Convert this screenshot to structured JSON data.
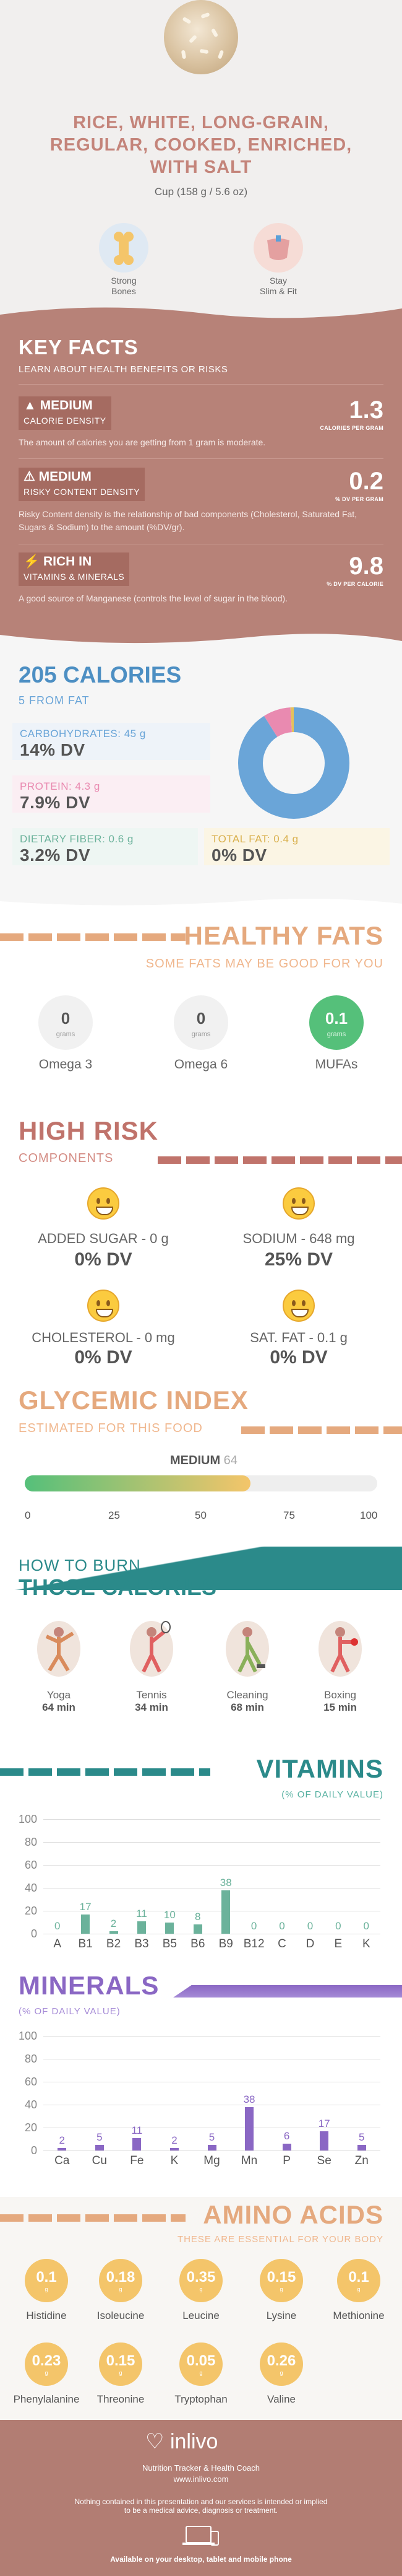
{
  "header": {
    "title_lines": [
      "RICE, WHITE, LONG-GRAIN,",
      "REGULAR, COOKED, ENRICHED,",
      "WITH SALT"
    ],
    "serving": "Cup (158 g / 5.6 oz)",
    "badges": [
      {
        "label1": "Strong",
        "label2": "Bones",
        "icon": "bone-icon"
      },
      {
        "label1": "Stay",
        "label2": "Slim & Fit",
        "icon": "scale-icon"
      }
    ]
  },
  "key_facts": {
    "title": "KEY FACTS",
    "subtitle": "LEARN ABOUT HEALTH BENEFITS OR RISKS",
    "items": [
      {
        "level": "MEDIUM",
        "name": "CALORIE DENSITY",
        "value": "1.3",
        "unit": "CALORIES PER GRAM",
        "desc": "The amount of calories you are getting from 1 gram is moderate."
      },
      {
        "level": "MEDIUM",
        "name": "RISKY CONTENT DENSITY",
        "value": "0.2",
        "unit": "% DV PER GRAM",
        "desc": "Risky Content density is the relationship of bad components (Cholesterol, Saturated Fat, Sugars & Sodium) to the amount (%DV/gr)."
      },
      {
        "level": "RICH IN",
        "name": "VITAMINS & MINERALS",
        "value": "9.8",
        "unit": "% DV PER CALORIE",
        "desc": "A good source of Manganese (controls the level of sugar in the blood)."
      }
    ]
  },
  "calories": {
    "title": "205 CALORIES",
    "subtitle": "5 FROM FAT",
    "nutrients": [
      {
        "label": "CARBOHYDRATES: 45 g",
        "dv": "14% DV",
        "color": "#6aa5d8"
      },
      {
        "label": "PROTEIN: 4.3 g",
        "dv": "7.9% DV",
        "color": "#e98ab0"
      },
      {
        "label": "DIETARY FIBER: 0.6 g",
        "dv": "3.2% DV",
        "color": "#6bb29b"
      },
      {
        "label": "TOTAL FAT: 0.4 g",
        "dv": "0% DV",
        "color": "#e5c15c"
      }
    ],
    "pie": {
      "carbs": 0.91,
      "protein": 0.08,
      "fat": 0.01
    }
  },
  "healthy_fats": {
    "title": "HEALTHY FATS",
    "subtitle": "SOME FATS MAY BE GOOD FOR YOU",
    "items": [
      {
        "value": "0",
        "unit": "grams",
        "label": "Omega 3"
      },
      {
        "value": "0",
        "unit": "grams",
        "label": "Omega 6"
      },
      {
        "value": "0.1",
        "unit": "grams",
        "label": "MUFAs"
      }
    ]
  },
  "high_risk": {
    "title": "HIGH RISK",
    "subtitle": "COMPONENTS",
    "items": [
      {
        "label": "ADDED SUGAR - 0 g",
        "dv": "0% DV"
      },
      {
        "label": "SODIUM - 648 mg",
        "dv": "25% DV"
      },
      {
        "label": "CHOLESTEROL - 0 mg",
        "dv": "0% DV"
      },
      {
        "label": "SAT. FAT - 0.1 g",
        "dv": "0% DV"
      }
    ]
  },
  "glycemic": {
    "title": "GLYCEMIC INDEX",
    "subtitle": "ESTIMATED FOR THIS FOOD",
    "level": "MEDIUM",
    "value": "64",
    "ticks": [
      "0",
      "25",
      "50",
      "75",
      "100"
    ]
  },
  "burn": {
    "title_line1": "HOW TO BURN",
    "title_line2": "THOSE CALORIES",
    "items": [
      {
        "label": "Yoga",
        "time": "64 min",
        "icon": "yoga-icon"
      },
      {
        "label": "Tennis",
        "time": "34 min",
        "icon": "tennis-icon"
      },
      {
        "label": "Cleaning",
        "time": "68 min",
        "icon": "cleaning-icon"
      },
      {
        "label": "Boxing",
        "time": "15 min",
        "icon": "boxing-icon"
      }
    ]
  },
  "vitamins": {
    "title": "VITAMINS",
    "subtitle": "(% OF DAILY VALUE)"
  },
  "minerals": {
    "title": "MINERALS",
    "subtitle": "(% OF DAILY VALUE)"
  },
  "chart_data": [
    {
      "type": "bar",
      "categories": [
        "A",
        "B1",
        "B2",
        "B3",
        "B5",
        "B6",
        "B9",
        "B12",
        "C",
        "D",
        "E",
        "K"
      ],
      "values": [
        0,
        17,
        2,
        11,
        10,
        8,
        38,
        0,
        0,
        0,
        0,
        0
      ],
      "value_labels": [
        "0",
        "17",
        "2",
        "11",
        "10",
        "8",
        "38",
        "0",
        "0",
        "0",
        "0",
        "0"
      ],
      "yticks": [
        "0",
        "20",
        "40",
        "60",
        "80",
        "100"
      ],
      "ylim": [
        0,
        100
      ],
      "color": "#6bb29b"
    },
    {
      "type": "bar",
      "categories": [
        "Ca",
        "Cu",
        "Fe",
        "K",
        "Mg",
        "Mn",
        "P",
        "Se",
        "Zn"
      ],
      "values": [
        2,
        5,
        11,
        2,
        5,
        38,
        6,
        17,
        5
      ],
      "value_labels": [
        "2",
        "5",
        "11",
        "2",
        "5",
        "38",
        "6",
        "17",
        "5"
      ],
      "yticks": [
        "0",
        "20",
        "40",
        "60",
        "80",
        "100"
      ],
      "ylim": [
        0,
        100
      ],
      "color": "#8a67c4"
    }
  ],
  "amino": {
    "title": "AMINO ACIDS",
    "subtitle": "THESE ARE ESSENTIAL FOR YOUR BODY",
    "unit": "g",
    "items": [
      {
        "value": "0.1",
        "label": "Histidine"
      },
      {
        "value": "0.18",
        "label": "Isoleucine"
      },
      {
        "value": "0.35",
        "label": "Leucine"
      },
      {
        "value": "0.15",
        "label": "Lysine"
      },
      {
        "value": "0.1",
        "label": "Methionine"
      },
      {
        "value": "0.23",
        "label": "Phenylalanine"
      },
      {
        "value": "0.15",
        "label": "Threonine"
      },
      {
        "value": "0.05",
        "label": "Tryptophan"
      },
      {
        "value": "0.26",
        "label": "Valine"
      }
    ]
  },
  "footer": {
    "brand": "inlivo",
    "tagline": "Nutrition Tracker & Health Coach",
    "url": "www.inlivo.com",
    "disclaimer1": "Nothing contained in this presentation and our services is intended or implied",
    "disclaimer2": "to be a medical advice, diagnosis or treatment.",
    "available": "Available on your desktop, tablet and mobile phone"
  }
}
